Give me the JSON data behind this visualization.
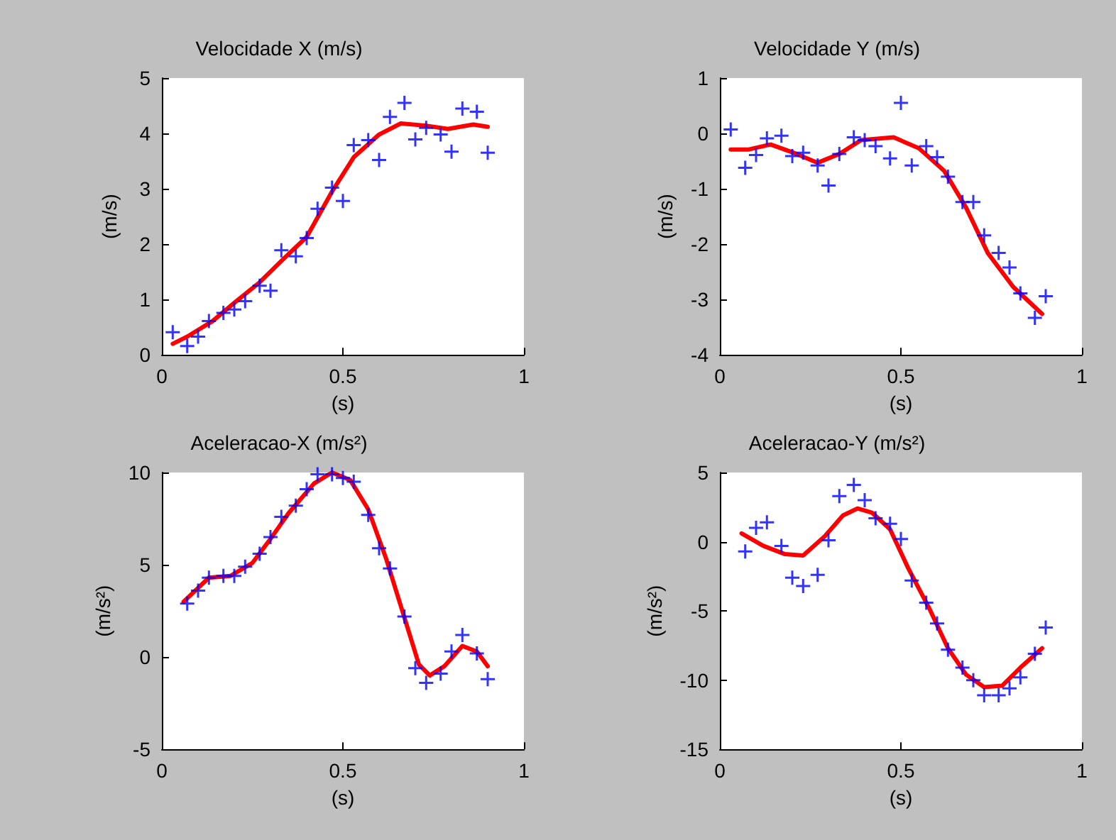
{
  "chart_data": [
    {
      "type": "scatter",
      "title": "Velocidade X (m/s)",
      "xlabel": "(s)",
      "ylabel": "(m/s)",
      "xlim": [
        0,
        1
      ],
      "xticks": [
        0,
        0.5,
        1
      ],
      "ylim": [
        0,
        5
      ],
      "yticks": [
        0,
        1,
        2,
        3,
        4,
        5
      ],
      "grid": false,
      "marker": "cross",
      "series": [
        {
          "color": "#0000ff",
          "x": [
            0.03,
            0.07,
            0.1,
            0.13,
            0.17,
            0.2,
            0.23,
            0.27,
            0.3,
            0.33,
            0.37,
            0.4,
            0.43,
            0.47,
            0.5,
            0.53,
            0.57,
            0.6,
            0.63,
            0.67,
            0.7,
            0.73,
            0.77,
            0.8,
            0.83,
            0.87,
            0.9
          ],
          "values": [
            0.41,
            0.16,
            0.33,
            0.61,
            0.76,
            0.82,
            0.97,
            1.25,
            1.16,
            1.89,
            1.78,
            2.11,
            2.64,
            3.02,
            2.78,
            3.79,
            3.88,
            3.52,
            4.3,
            4.55,
            3.89,
            4.1,
            3.98,
            3.67,
            4.45,
            4.39,
            3.65
          ]
        },
        {
          "type": "line",
          "color": "#ff0000",
          "marker": "none",
          "line_style": "solid",
          "x": [
            0.03,
            0.07,
            0.14,
            0.2,
            0.27,
            0.34,
            0.4,
            0.47,
            0.53,
            0.6,
            0.66,
            0.73,
            0.79,
            0.86,
            0.9
          ],
          "values": [
            0.2,
            0.33,
            0.61,
            0.94,
            1.31,
            1.76,
            2.13,
            2.95,
            3.57,
            3.98,
            4.18,
            4.14,
            4.08,
            4.16,
            4.12
          ]
        }
      ]
    },
    {
      "type": "scatter",
      "title": "Velocidade Y (m/s)",
      "xlabel": "(s)",
      "ylabel": "(m/s)",
      "xlim": [
        0,
        1
      ],
      "xticks": [
        0,
        0.5,
        1
      ],
      "ylim": [
        -4,
        1
      ],
      "yticks": [
        -4,
        -3,
        -2,
        -1,
        0,
        1
      ],
      "grid": false,
      "marker": "cross",
      "series": [
        {
          "color": "#0000ff",
          "x": [
            0.03,
            0.07,
            0.1,
            0.13,
            0.17,
            0.2,
            0.23,
            0.27,
            0.3,
            0.33,
            0.37,
            0.4,
            0.43,
            0.47,
            0.5,
            0.53,
            0.57,
            0.6,
            0.63,
            0.67,
            0.7,
            0.73,
            0.77,
            0.8,
            0.83,
            0.87,
            0.9
          ],
          "values": [
            0.07,
            -0.62,
            -0.39,
            -0.09,
            -0.04,
            -0.41,
            -0.35,
            -0.58,
            -0.94,
            -0.37,
            -0.07,
            -0.12,
            -0.23,
            -0.45,
            0.55,
            -0.58,
            -0.23,
            -0.43,
            -0.78,
            -1.24,
            -1.24,
            -1.84,
            -2.16,
            -2.42,
            -2.89,
            -3.33,
            -2.94
          ]
        },
        {
          "type": "line",
          "color": "#ff0000",
          "marker": "none",
          "line_style": "solid",
          "x": [
            0.03,
            0.08,
            0.14,
            0.2,
            0.27,
            0.33,
            0.39,
            0.48,
            0.55,
            0.62,
            0.68,
            0.74,
            0.81,
            0.89
          ],
          "values": [
            -0.29,
            -0.29,
            -0.2,
            -0.34,
            -0.53,
            -0.37,
            -0.12,
            -0.07,
            -0.27,
            -0.68,
            -1.34,
            -2.16,
            -2.77,
            -3.26
          ]
        }
      ]
    },
    {
      "type": "scatter",
      "title": "Aceleracao-X (m/s²)",
      "xlabel": "(s)",
      "ylabel": "(m/s²)",
      "xlim": [
        0,
        1
      ],
      "xticks": [
        0,
        0.5,
        1
      ],
      "ylim": [
        -5,
        10
      ],
      "yticks": [
        -5,
        0,
        5,
        10
      ],
      "grid": false,
      "marker": "cross",
      "series": [
        {
          "color": "#0000ff",
          "x": [
            0.07,
            0.1,
            0.13,
            0.17,
            0.2,
            0.23,
            0.27,
            0.3,
            0.33,
            0.37,
            0.4,
            0.43,
            0.47,
            0.5,
            0.53,
            0.57,
            0.6,
            0.63,
            0.67,
            0.7,
            0.73,
            0.77,
            0.8,
            0.83,
            0.87,
            0.9
          ],
          "values": [
            2.9,
            3.6,
            4.3,
            4.4,
            4.4,
            4.9,
            5.6,
            6.5,
            7.6,
            8.2,
            9.1,
            9.9,
            9.9,
            9.7,
            9.5,
            7.7,
            5.9,
            4.8,
            2.2,
            -0.6,
            -1.4,
            -0.9,
            0.3,
            1.2,
            0.2,
            -1.2
          ]
        },
        {
          "type": "line",
          "color": "#ff0000",
          "marker": "none",
          "line_style": "solid",
          "x": [
            0.06,
            0.13,
            0.19,
            0.25,
            0.3,
            0.35,
            0.42,
            0.47,
            0.52,
            0.57,
            0.62,
            0.68,
            0.71,
            0.74,
            0.78,
            0.83,
            0.87,
            0.9
          ],
          "values": [
            3.0,
            4.3,
            4.4,
            5.1,
            6.4,
            7.8,
            9.4,
            10,
            9.6,
            8.0,
            5.3,
            1.5,
            -0.4,
            -1.0,
            -0.5,
            0.6,
            0.3,
            -0.5
          ]
        }
      ]
    },
    {
      "type": "scatter",
      "title": "Aceleracao-Y (m/s²)",
      "xlabel": "(s)",
      "ylabel": "(m/s²)",
      "xlim": [
        0,
        1
      ],
      "xticks": [
        0,
        0.5,
        1
      ],
      "ylim": [
        -15,
        5
      ],
      "yticks": [
        -15,
        -10,
        -5,
        0,
        5
      ],
      "grid": false,
      "marker": "cross",
      "series": [
        {
          "color": "#0000ff",
          "x": [
            0.07,
            0.1,
            0.13,
            0.17,
            0.2,
            0.23,
            0.27,
            0.3,
            0.33,
            0.37,
            0.4,
            0.43,
            0.47,
            0.5,
            0.53,
            0.57,
            0.6,
            0.63,
            0.67,
            0.7,
            0.73,
            0.77,
            0.8,
            0.83,
            0.87,
            0.9
          ],
          "values": [
            -0.7,
            1.0,
            1.4,
            -0.3,
            -2.6,
            -3.2,
            -2.4,
            0.1,
            3.3,
            4.1,
            3.0,
            1.7,
            1.3,
            0.2,
            -2.8,
            -4.4,
            -5.9,
            -7.8,
            -9.1,
            -10.0,
            -11.1,
            -11.1,
            -10.6,
            -9.8,
            -8.1,
            -6.2
          ]
        },
        {
          "type": "line",
          "color": "#ff0000",
          "marker": "none",
          "line_style": "solid",
          "x": [
            0.06,
            0.12,
            0.18,
            0.23,
            0.29,
            0.34,
            0.38,
            0.42,
            0.47,
            0.52,
            0.58,
            0.63,
            0.68,
            0.73,
            0.78,
            0.83,
            0.89
          ],
          "values": [
            0.6,
            -0.3,
            -0.9,
            -1.0,
            0.4,
            1.9,
            2.4,
            2.1,
            0.9,
            -1.9,
            -4.9,
            -7.7,
            -9.6,
            -10.5,
            -10.4,
            -9.1,
            -7.7
          ]
        }
      ]
    }
  ]
}
